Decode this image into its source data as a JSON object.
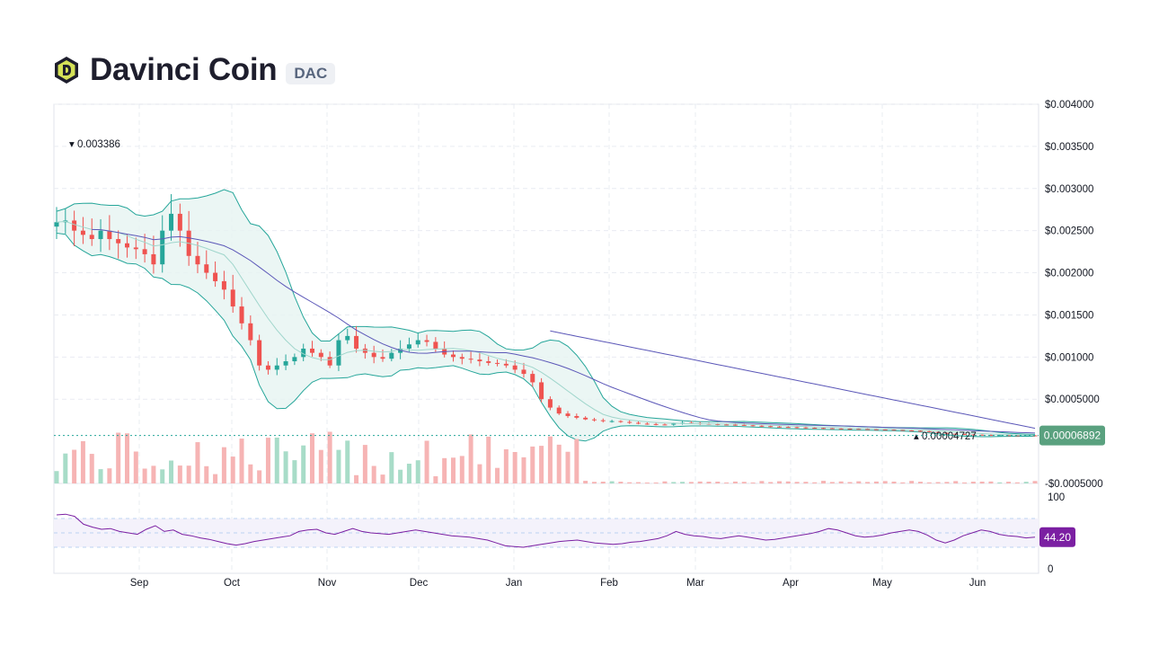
{
  "header": {
    "name": "Davinci Coin",
    "symbol": "DAC",
    "logo_icon": "davinci-coin-logo-icon",
    "logo_color": "#1e1e2d",
    "logo_accent": "#d4e157"
  },
  "chart_data": {
    "type": "candlestick",
    "price_axis": {
      "ylim": [
        -0.0005,
        0.004
      ],
      "ticks": [
        {
          "value": 0.004,
          "label": "$0.004000"
        },
        {
          "value": 0.0035,
          "label": "$0.003500"
        },
        {
          "value": 0.003,
          "label": "$0.003000"
        },
        {
          "value": 0.0025,
          "label": "$0.002500"
        },
        {
          "value": 0.002,
          "label": "$0.002000"
        },
        {
          "value": 0.0015,
          "label": "$0.001500"
        },
        {
          "value": 0.001,
          "label": "$0.001000"
        },
        {
          "value": 0.0005,
          "label": "$0.0005000"
        },
        {
          "value": -0.0005,
          "label": "-$0.0005000"
        }
      ]
    },
    "time_axis": {
      "labels": [
        "Sep",
        "Oct",
        "Nov",
        "Dec",
        "Jan",
        "Feb",
        "Mar",
        "Apr",
        "May",
        "Jun"
      ]
    },
    "grid": true,
    "high_marker": {
      "label": "0.003386"
    },
    "low_marker": {
      "label": "0.00004727"
    },
    "last_price": {
      "label": "0.00006892",
      "color": "#5aa17f"
    },
    "colors": {
      "up": "#26a69a",
      "down": "#ef5350",
      "band_fill": "#e6f4f1",
      "band_line": "#26a69a",
      "ma_slow": "#5b57b8",
      "ma_fast": "#a0d6cc",
      "rsi": "#7b1fa2"
    },
    "close_series": [
      0.0026,
      0.00262,
      0.0025,
      0.00245,
      0.0024,
      0.0025,
      0.0024,
      0.00235,
      0.0023,
      0.00228,
      0.00222,
      0.0021,
      0.0025,
      0.0027,
      0.0025,
      0.0022,
      0.0021,
      0.002,
      0.0019,
      0.0018,
      0.0016,
      0.0014,
      0.0012,
      0.0009,
      0.00085,
      0.0009,
      0.00095,
      0.001,
      0.0011,
      0.00105,
      0.001,
      0.0009,
      0.0012,
      0.00125,
      0.0011,
      0.00105,
      0.001,
      0.00098,
      0.00105,
      0.0011,
      0.00115,
      0.0012,
      0.00118,
      0.0011,
      0.00103,
      0.001,
      0.00098,
      0.00097,
      0.00095,
      0.00093,
      0.00092,
      0.0009,
      0.00085,
      0.0008,
      0.0007,
      0.0005,
      0.0004,
      0.00033,
      0.0003,
      0.00028,
      0.00026,
      0.00025,
      0.00024,
      0.00024,
      0.00023,
      0.00022,
      0.00021,
      0.000205,
      0.0002,
      0.000198,
      0.00021,
      0.00022,
      0.000215,
      0.00021,
      0.000205,
      0.0002,
      0.000198,
      0.000195,
      0.00019,
      0.000185,
      0.00018,
      0.000175,
      0.00017,
      0.000168,
      0.000165,
      0.00016,
      0.000158,
      0.000155,
      0.000152,
      0.00015,
      0.000148,
      0.000145,
      0.000143,
      0.00014,
      0.000138,
      0.000135,
      0.00013,
      0.000125,
      0.00012,
      0.00011,
      0.0001,
      9e-05,
      8.5e-05,
      8e-05,
      7.8e-05,
      7.5e-05,
      7e-05,
      7.2e-05,
      7e-05,
      6.8e-05,
      7e-05,
      6.9e-05
    ],
    "rsi": {
      "levels": {
        "top": 100,
        "bottom": 0
      },
      "labels": {
        "top": "100",
        "bottom": "0"
      },
      "last_label": "44.20",
      "series": [
        75,
        76,
        73,
        62,
        58,
        55,
        56,
        52,
        50,
        48,
        55,
        60,
        52,
        54,
        48,
        46,
        43,
        41,
        38,
        35,
        33,
        35,
        38,
        40,
        42,
        44,
        46,
        52,
        54,
        55,
        50,
        48,
        52,
        56,
        52,
        50,
        49,
        48,
        50,
        52,
        54,
        52,
        50,
        48,
        46,
        45,
        44,
        42,
        40,
        36,
        32,
        31,
        30,
        32,
        34,
        36,
        38,
        39,
        40,
        38,
        36,
        35,
        34,
        35,
        37,
        38,
        40,
        42,
        46,
        52,
        48,
        46,
        45,
        43,
        42,
        44,
        46,
        44,
        42,
        40,
        41,
        43,
        45,
        47,
        49,
        52,
        56,
        54,
        50,
        46,
        44,
        45,
        47,
        50,
        52,
        54,
        52,
        47,
        40,
        36,
        40,
        46,
        50,
        54,
        52,
        48,
        46,
        45,
        43,
        44
      ]
    }
  }
}
